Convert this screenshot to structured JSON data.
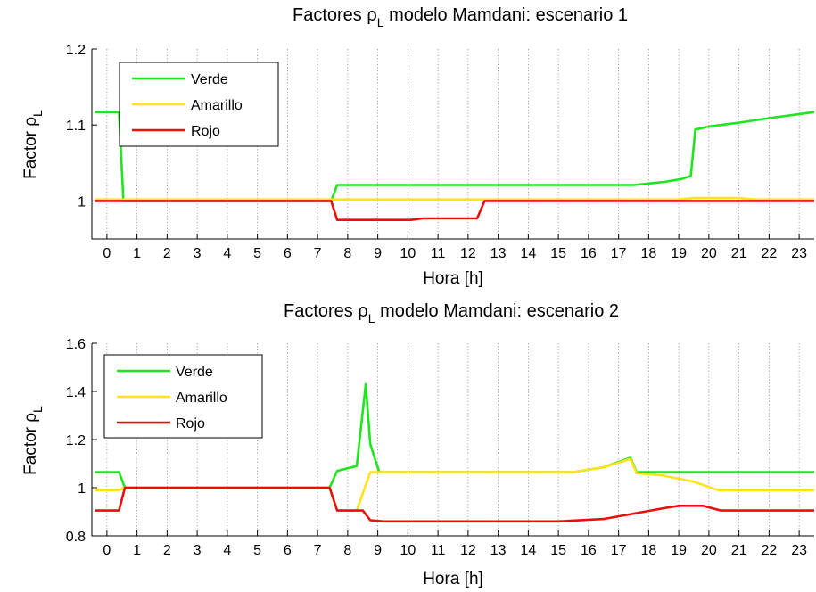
{
  "colors": {
    "verde": "#1fe51f",
    "amarillo": "#ffe21a",
    "rojo": "#e8100c"
  },
  "chart_data": [
    {
      "type": "line",
      "title": {
        "prefix": "Factores ",
        "symbol": "ρ",
        "subscript": "L",
        "suffix": " modelo Mamdani: escenario 1"
      },
      "xlabel": "Hora [h]",
      "ylabel": {
        "prefix": "Factor ",
        "symbol": "ρ",
        "subscript": "L"
      },
      "xlim": [
        -0.5,
        23.5
      ],
      "ylim": [
        0.95,
        1.2
      ],
      "xticks": [
        0,
        1,
        2,
        3,
        4,
        5,
        6,
        7,
        8,
        9,
        10,
        11,
        12,
        13,
        14,
        15,
        16,
        17,
        18,
        19,
        20,
        21,
        22,
        23
      ],
      "yticks": [
        {
          "v": 1,
          "label": "1"
        },
        {
          "v": 1.1,
          "label": "1.1"
        },
        {
          "v": 1.2,
          "label": "1.2"
        }
      ],
      "grid": "x-dotted",
      "legend_position": "top-left",
      "series": [
        {
          "name": "Verde",
          "color_key": "verde",
          "x": [
            -0.4,
            0.4,
            0.55,
            7.45,
            7.65,
            17.5,
            18.0,
            18.5,
            19.1,
            19.4,
            19.55,
            20.0,
            21.0,
            22.0,
            23.5
          ],
          "y": [
            1.117,
            1.117,
            1.0,
            1.0,
            1.021,
            1.021,
            1.023,
            1.025,
            1.029,
            1.033,
            1.094,
            1.098,
            1.103,
            1.109,
            1.117
          ]
        },
        {
          "name": "Amarillo",
          "color_key": "amarillo",
          "x": [
            -0.4,
            19.0,
            19.5,
            21.0,
            21.5,
            23.5
          ],
          "y": [
            1.002,
            1.002,
            1.004,
            1.004,
            1.002,
            1.002
          ]
        },
        {
          "name": "Rojo",
          "color_key": "rojo",
          "x": [
            -0.4,
            7.45,
            7.65,
            10.1,
            10.5,
            12.0,
            12.3,
            12.55,
            23.5
          ],
          "y": [
            1.0,
            1.0,
            0.975,
            0.975,
            0.977,
            0.977,
            0.977,
            1.0,
            1.0
          ]
        }
      ]
    },
    {
      "type": "line",
      "title": {
        "prefix": "Factores ",
        "symbol": "ρ",
        "subscript": "L",
        "suffix": " modelo Mamdani: escenario 2"
      },
      "xlabel": "Hora [h]",
      "ylabel": {
        "prefix": "Factor ",
        "symbol": "ρ",
        "subscript": "L"
      },
      "xlim": [
        -0.5,
        23.5
      ],
      "ylim": [
        0.8,
        1.6
      ],
      "xticks": [
        0,
        1,
        2,
        3,
        4,
        5,
        6,
        7,
        8,
        9,
        10,
        11,
        12,
        13,
        14,
        15,
        16,
        17,
        18,
        19,
        20,
        21,
        22,
        23
      ],
      "yticks": [
        {
          "v": 0.8,
          "label": "0.8"
        },
        {
          "v": 1,
          "label": "1"
        },
        {
          "v": 1.2,
          "label": "1.2"
        },
        {
          "v": 1.4,
          "label": "1.4"
        },
        {
          "v": 1.6,
          "label": "1.6"
        }
      ],
      "grid": "x-dotted",
      "legend_position": "top-left",
      "series": [
        {
          "name": "Verde",
          "color_key": "verde",
          "x": [
            -0.4,
            0.4,
            0.6,
            7.4,
            7.65,
            8.3,
            8.6,
            8.75,
            9.05,
            15.5,
            16.5,
            17.4,
            17.6,
            23.5
          ],
          "y": [
            1.065,
            1.065,
            1.0,
            1.0,
            1.07,
            1.09,
            1.43,
            1.18,
            1.065,
            1.065,
            1.085,
            1.125,
            1.065,
            1.065
          ]
        },
        {
          "name": "Amarillo",
          "color_key": "amarillo",
          "x": [
            -0.4,
            0.4,
            0.6,
            7.4,
            7.65,
            8.3,
            8.75,
            15.5,
            16.5,
            17.4,
            17.6,
            18.5,
            19.5,
            20.3,
            23.5
          ],
          "y": [
            0.99,
            0.99,
            1.0,
            1.0,
            0.905,
            0.905,
            1.065,
            1.065,
            1.085,
            1.12,
            1.06,
            1.05,
            1.025,
            0.99,
            0.99
          ]
        },
        {
          "name": "Rojo",
          "color_key": "rojo",
          "x": [
            -0.4,
            0.4,
            0.6,
            7.4,
            7.65,
            8.5,
            8.75,
            9.2,
            15.0,
            16.5,
            18.5,
            19.0,
            19.8,
            20.4,
            23.5
          ],
          "y": [
            0.905,
            0.905,
            1.0,
            1.0,
            0.905,
            0.905,
            0.865,
            0.86,
            0.86,
            0.87,
            0.915,
            0.925,
            0.925,
            0.905,
            0.905
          ]
        }
      ]
    }
  ]
}
